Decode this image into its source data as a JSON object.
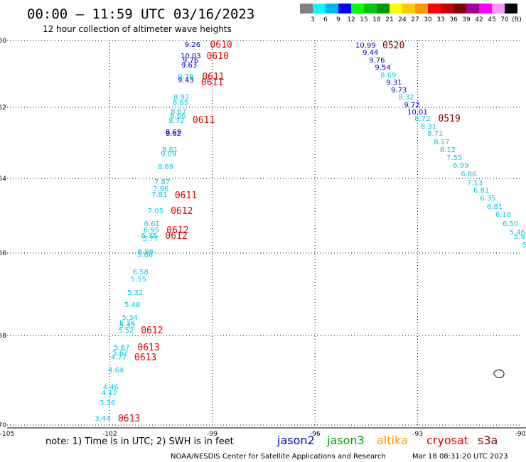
{
  "chart_data": {
    "type": "scatter",
    "title": "00:00 — 11:59 UTC 03/16/2023",
    "subtitle": "12 hour collection of altimeter wave heights",
    "legend": {
      "unit": "(ft)",
      "labels": [
        "3",
        "6",
        "9",
        "12",
        "15",
        "18",
        "21",
        "24",
        "27",
        "30",
        "33",
        "36",
        "39",
        "42",
        "45",
        "70"
      ],
      "colors": [
        "#808080",
        "#00ffff",
        "#00b4ff",
        "#0000ff",
        "#00ff00",
        "#00c800",
        "#009600",
        "#ffff00",
        "#ffc800",
        "#ff9600",
        "#ff0000",
        "#c80000",
        "#800000",
        "#a000a0",
        "#ff00ff",
        "#ff96ff",
        "#000000"
      ]
    },
    "x_ticks": [
      "-105",
      "-102",
      "-99",
      "-96",
      "-93",
      "-90"
    ],
    "y_ticks": [
      "-60",
      "-62",
      "-64",
      "-66",
      "-68",
      "-70"
    ],
    "xlim": [
      -105,
      -90
    ],
    "ylim": [
      -70,
      -60
    ],
    "colors": {
      "cyan": "#00c8e6",
      "blue": "#0000c8",
      "red": "#e00000",
      "darkred": "#800000"
    },
    "points": [
      {
        "v": "9.26",
        "lon": -99.81,
        "lat": -60.11,
        "c": "blue"
      },
      {
        "v": "10.03",
        "lon": -99.93,
        "lat": -60.45,
        "c": "blue"
      },
      {
        "v": "9.76",
        "lon": -99.87,
        "lat": -60.57,
        "c": "blue"
      },
      {
        "v": "9.63",
        "lon": -99.91,
        "lat": -60.72,
        "c": "blue"
      },
      {
        "v": "9.78",
        "lon": -100.01,
        "lat": -61.06,
        "c": "cyan"
      },
      {
        "v": "9.43",
        "lon": -100.01,
        "lat": -61.17,
        "c": "blue"
      },
      {
        "v": "8.97",
        "lon": -100.14,
        "lat": -61.68,
        "c": "cyan"
      },
      {
        "v": "8.85",
        "lon": -100.16,
        "lat": -61.85,
        "c": "cyan"
      },
      {
        "v": "8.67",
        "lon": -100.22,
        "lat": -62.1,
        "c": "cyan"
      },
      {
        "v": "8.66",
        "lon": -100.24,
        "lat": -62.22,
        "c": "cyan"
      },
      {
        "v": "8.72",
        "lon": -100.28,
        "lat": -62.36,
        "c": "cyan"
      },
      {
        "v": "8.69",
        "lon": -100.37,
        "lat": -62.68,
        "c": "blue"
      },
      {
        "v": "8.62",
        "lon": -100.37,
        "lat": -62.72,
        "c": "blue"
      },
      {
        "v": "8.61",
        "lon": -100.47,
        "lat": -63.18,
        "c": "cyan"
      },
      {
        "v": "9.09",
        "lon": -100.51,
        "lat": -63.3,
        "c": "cyan"
      },
      {
        "v": "8.69",
        "lon": -100.6,
        "lat": -63.66,
        "c": "cyan"
      },
      {
        "v": "7.87",
        "lon": -100.7,
        "lat": -64.08,
        "c": "cyan"
      },
      {
        "v": "7.96",
        "lon": -100.74,
        "lat": -64.27,
        "c": "cyan"
      },
      {
        "v": "7.81",
        "lon": -100.78,
        "lat": -64.42,
        "c": "cyan"
      },
      {
        "v": "7.05",
        "lon": -100.89,
        "lat": -64.86,
        "c": "cyan"
      },
      {
        "v": "6.61",
        "lon": -101.0,
        "lat": -65.2,
        "c": "cyan"
      },
      {
        "v": "6.95",
        "lon": -101.02,
        "lat": -65.37,
        "c": "cyan"
      },
      {
        "v": "6.35",
        "lon": -101.08,
        "lat": -65.52,
        "c": "cyan"
      },
      {
        "v": "5.77",
        "lon": -101.04,
        "lat": -65.6,
        "c": "cyan"
      },
      {
        "v": "6.96",
        "lon": -101.18,
        "lat": -65.94,
        "c": "cyan"
      },
      {
        "v": "5.86",
        "lon": -101.2,
        "lat": -66.03,
        "c": "cyan"
      },
      {
        "v": "6.58",
        "lon": -101.33,
        "lat": -66.45,
        "c": "cyan"
      },
      {
        "v": "5.55",
        "lon": -101.39,
        "lat": -66.62,
        "c": "cyan"
      },
      {
        "v": "5.32",
        "lon": -101.49,
        "lat": -66.95,
        "c": "cyan"
      },
      {
        "v": "5.48",
        "lon": -101.57,
        "lat": -67.24,
        "c": "cyan"
      },
      {
        "v": "5.34",
        "lon": -101.64,
        "lat": -67.55,
        "c": "cyan"
      },
      {
        "v": "5.76",
        "lon": -101.72,
        "lat": -67.69,
        "c": "cyan"
      },
      {
        "v": "5.93",
        "lon": -101.72,
        "lat": -67.74,
        "c": "cyan"
      },
      {
        "v": "5.52",
        "lon": -101.76,
        "lat": -67.86,
        "c": "cyan"
      },
      {
        "v": "5.87",
        "lon": -101.88,
        "lat": -68.25,
        "c": "cyan"
      },
      {
        "v": "5.62",
        "lon": -101.92,
        "lat": -68.37,
        "c": "cyan"
      },
      {
        "v": "4.77",
        "lon": -101.97,
        "lat": -68.48,
        "c": "cyan"
      },
      {
        "v": "4.64",
        "lon": -102.05,
        "lat": -68.76,
        "c": "cyan"
      },
      {
        "v": "4.46",
        "lon": -102.2,
        "lat": -69.14,
        "c": "cyan"
      },
      {
        "v": "4.12",
        "lon": -102.24,
        "lat": -69.27,
        "c": "cyan"
      },
      {
        "v": "3.36",
        "lon": -102.3,
        "lat": -69.49,
        "c": "cyan"
      },
      {
        "v": "3.44",
        "lon": -102.44,
        "lat": -69.84,
        "c": "cyan"
      },
      {
        "v": "10.99",
        "lon": -94.82,
        "lat": -60.13,
        "c": "blue"
      },
      {
        "v": "9.44",
        "lon": -94.61,
        "lat": -60.34,
        "c": "blue"
      },
      {
        "v": "9.76",
        "lon": -94.42,
        "lat": -60.57,
        "c": "blue"
      },
      {
        "v": "9.54",
        "lon": -94.25,
        "lat": -60.79,
        "c": "blue"
      },
      {
        "v": "8.69",
        "lon": -94.09,
        "lat": -61.02,
        "c": "cyan"
      },
      {
        "v": "9.31",
        "lon": -93.92,
        "lat": -61.23,
        "c": "blue"
      },
      {
        "v": "9.73",
        "lon": -93.78,
        "lat": -61.47,
        "c": "blue"
      },
      {
        "v": "8.32",
        "lon": -93.57,
        "lat": -61.68,
        "c": "cyan"
      },
      {
        "v": "9.72",
        "lon": -93.4,
        "lat": -61.91,
        "c": "blue"
      },
      {
        "v": "10.01",
        "lon": -93.3,
        "lat": -62.12,
        "c": "blue"
      },
      {
        "v": "8.72",
        "lon": -93.09,
        "lat": -62.3,
        "c": "cyan"
      },
      {
        "v": "8.31",
        "lon": -92.91,
        "lat": -62.52,
        "c": "cyan"
      },
      {
        "v": "8.71",
        "lon": -92.72,
        "lat": -62.72,
        "c": "cyan"
      },
      {
        "v": "8.17",
        "lon": -92.53,
        "lat": -62.96,
        "c": "cyan"
      },
      {
        "v": "8.12",
        "lon": -92.35,
        "lat": -63.18,
        "c": "cyan"
      },
      {
        "v": "7.55",
        "lon": -92.16,
        "lat": -63.4,
        "c": "cyan"
      },
      {
        "v": "6.99",
        "lon": -91.97,
        "lat": -63.62,
        "c": "cyan"
      },
      {
        "v": "6.86",
        "lon": -91.74,
        "lat": -63.86,
        "c": "cyan"
      },
      {
        "v": "7.13",
        "lon": -91.56,
        "lat": -64.1,
        "c": "cyan"
      },
      {
        "v": "6.81",
        "lon": -91.37,
        "lat": -64.3,
        "c": "cyan"
      },
      {
        "v": "6.35",
        "lon": -91.18,
        "lat": -64.51,
        "c": "cyan"
      },
      {
        "v": "6.81",
        "lon": -90.98,
        "lat": -64.74,
        "c": "cyan"
      },
      {
        "v": "6.10",
        "lon": -90.73,
        "lat": -64.95,
        "c": "cyan"
      },
      {
        "v": "6.50",
        "lon": -90.52,
        "lat": -65.2,
        "c": "cyan"
      },
      {
        "v": "5.46",
        "lon": -90.32,
        "lat": -65.43,
        "c": "cyan"
      },
      {
        "v": "5.9",
        "lon": -90.19,
        "lat": -65.54,
        "c": "cyan"
      },
      {
        "v": "5",
        "lon": -89.94,
        "lat": -65.77,
        "c": "cyan"
      }
    ],
    "times": [
      {
        "t": "0610",
        "lon": -99.07,
        "lat": -60.11,
        "c": "red"
      },
      {
        "t": "0610",
        "lon": -99.17,
        "lat": -60.45,
        "c": "red"
      },
      {
        "t": "0611",
        "lon": -99.3,
        "lat": -61.06,
        "c": "red"
      },
      {
        "t": "0611",
        "lon": -99.33,
        "lat": -61.23,
        "c": "red"
      },
      {
        "t": "0611",
        "lon": -99.58,
        "lat": -62.34,
        "c": "red"
      },
      {
        "t": "0611",
        "lon": -100.1,
        "lat": -64.44,
        "c": "red"
      },
      {
        "t": "0612",
        "lon": -100.22,
        "lat": -64.86,
        "c": "red"
      },
      {
        "t": "0612",
        "lon": -100.34,
        "lat": -65.37,
        "c": "red"
      },
      {
        "t": "0612",
        "lon": -100.38,
        "lat": -65.52,
        "c": "red"
      },
      {
        "t": "0612",
        "lon": -101.09,
        "lat": -67.86,
        "c": "red"
      },
      {
        "t": "0613",
        "lon": -101.19,
        "lat": -68.25,
        "c": "red"
      },
      {
        "t": "0613",
        "lon": -101.28,
        "lat": -68.48,
        "c": "red"
      },
      {
        "t": "0613",
        "lon": -101.76,
        "lat": -69.84,
        "c": "red"
      },
      {
        "t": "0520",
        "lon": -94.03,
        "lat": -60.13,
        "c": "darkred"
      },
      {
        "t": "0519",
        "lon": -92.4,
        "lat": -62.3,
        "c": "darkred"
      }
    ]
  },
  "footer": {
    "note": "note: 1) Time is in UTC; 2) SWH is in feet",
    "satellites": [
      {
        "name": "jason2",
        "color": "#0000c8"
      },
      {
        "name": "jason3",
        "color": "#00a000"
      },
      {
        "name": "altika",
        "color": "#ff9600"
      },
      {
        "name": "cryosat",
        "color": "#e00000"
      },
      {
        "name": "s3a",
        "color": "#800000"
      }
    ],
    "credit": "NOAA/NESDIS Center for Satellite Applications and Research",
    "timestamp": "Mar 18 08:31:20 UTC 2023"
  }
}
